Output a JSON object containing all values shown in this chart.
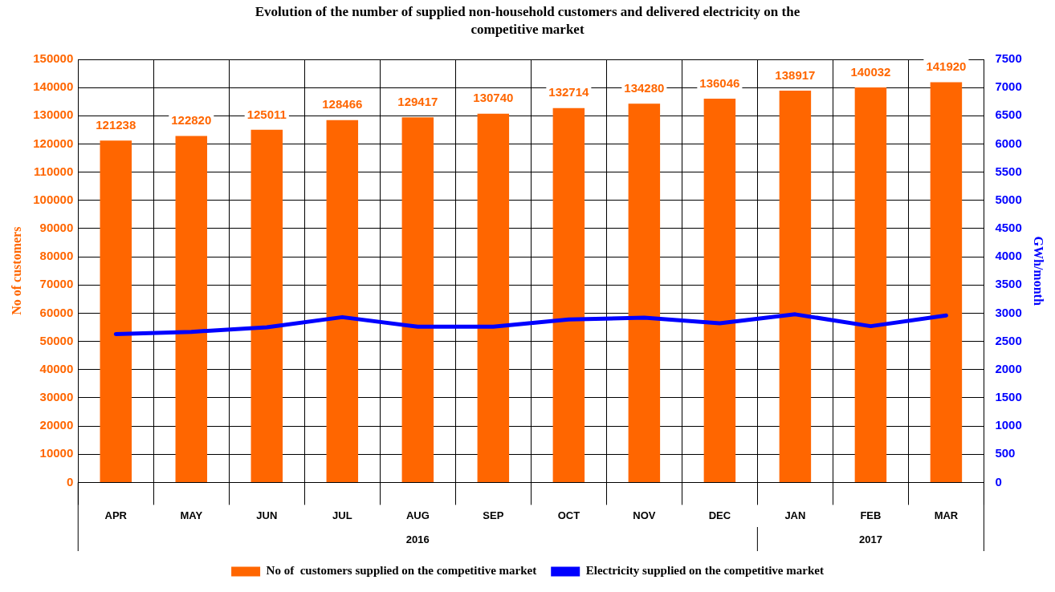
{
  "chart_data": {
    "type": "bar",
    "title": "Evolution of the number of supplied non-household customers  and delivered electricity  on the competitive market",
    "ylabel": "No of customers",
    "y2label": "GWh/month",
    "categories": [
      "APR",
      "MAY",
      "JUN",
      "JUL",
      "AUG",
      "SEP",
      "OCT",
      "NOV",
      "DEC",
      "JAN",
      "FEB",
      "MAR"
    ],
    "series": [
      {
        "name": "No of  customers supplied on the competitive market",
        "color": "#ff6600",
        "values": [
          121238,
          122820,
          125011,
          128466,
          129417,
          130740,
          132714,
          134280,
          136046,
          138917,
          140032,
          141920
        ],
        "value_labels": [
          "121238",
          "122820",
          "125011",
          "128466",
          "129417",
          "130740",
          "132714",
          "134280",
          "136046",
          "138917",
          "140032",
          "141920"
        ]
      },
      {
        "name": "Electricity supplied on the competitive market",
        "type": "line",
        "axis": "y2",
        "color": "#0000ff",
        "values": [
          2630,
          2670,
          2750,
          2930,
          2760,
          2760,
          2890,
          2920,
          2820,
          2980,
          2770,
          2960
        ]
      }
    ],
    "ylim": [
      0,
      150000
    ],
    "yticks": [
      0,
      10000,
      20000,
      30000,
      40000,
      50000,
      60000,
      70000,
      80000,
      90000,
      100000,
      110000,
      120000,
      130000,
      140000,
      150000
    ],
    "y2lim": [
      0,
      7500
    ],
    "y2ticks": [
      0,
      500,
      1000,
      1500,
      2000,
      2500,
      3000,
      3500,
      4000,
      4500,
      5000,
      5500,
      6000,
      6500,
      7000,
      7500
    ],
    "annotations": [
      "2016",
      "2017"
    ],
    "grid": true,
    "legend": "bottom",
    "marker": "none",
    "line_style": "solid"
  }
}
